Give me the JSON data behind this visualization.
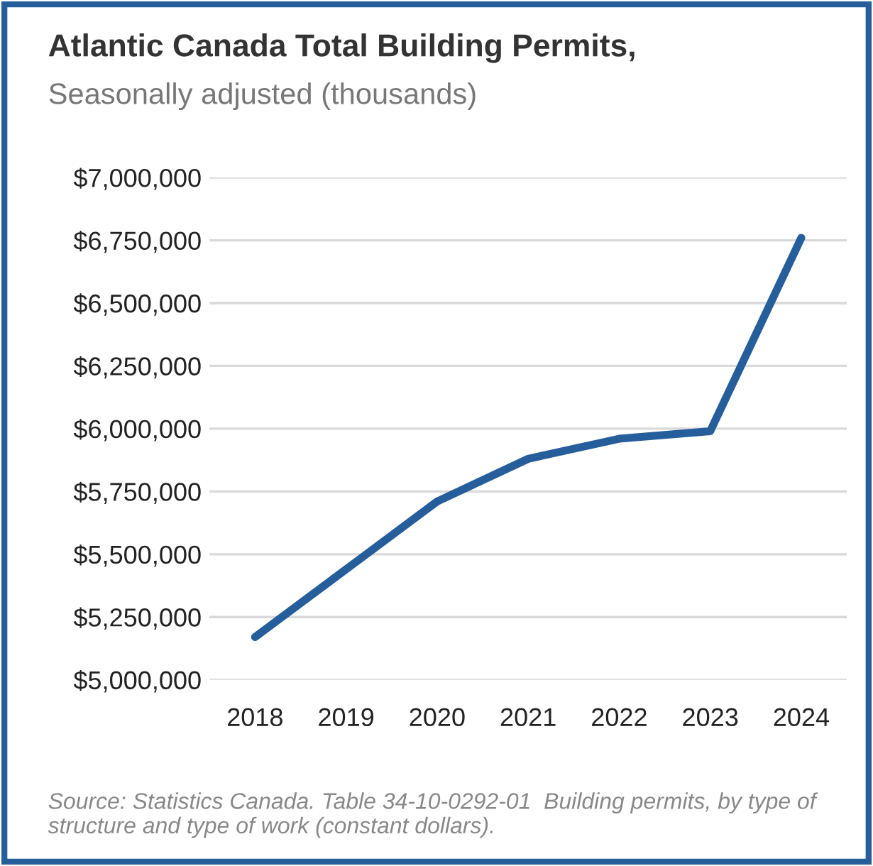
{
  "chart_data": {
    "type": "line",
    "title": "Atlantic Canada Total Building Permits,",
    "subtitle": "Seasonally adjusted (thousands)",
    "categories": [
      "2018",
      "2019",
      "2020",
      "2021",
      "2022",
      "2023",
      "2024"
    ],
    "series": [
      {
        "color": "#255e9b",
        "values": [
          5170000,
          5440000,
          5710000,
          5880000,
          5960000,
          5990000,
          6760000
        ]
      }
    ],
    "ylim": [
      5000000,
      7000000
    ],
    "yticks": [
      {
        "value": 5000000,
        "label": "$5,000,000"
      },
      {
        "value": 5250000,
        "label": "$5,250,000"
      },
      {
        "value": 5500000,
        "label": "$5,500,000"
      },
      {
        "value": 5750000,
        "label": "$5,750,000"
      },
      {
        "value": 6000000,
        "label": "$6,000,000"
      },
      {
        "value": 6250000,
        "label": "$6,250,000"
      },
      {
        "value": 6500000,
        "label": "$6,500,000"
      },
      {
        "value": 6750000,
        "label": "$6,750,000"
      },
      {
        "value": 7000000,
        "label": "$7,000,000"
      }
    ],
    "grid": "y",
    "legend": false,
    "marker": "none",
    "line_style": "solid",
    "annotations": [
      "Source: Statistics Canada. Table 34-10-0292-01  Building permits, by type of structure and type of work (constant dollars)."
    ]
  }
}
